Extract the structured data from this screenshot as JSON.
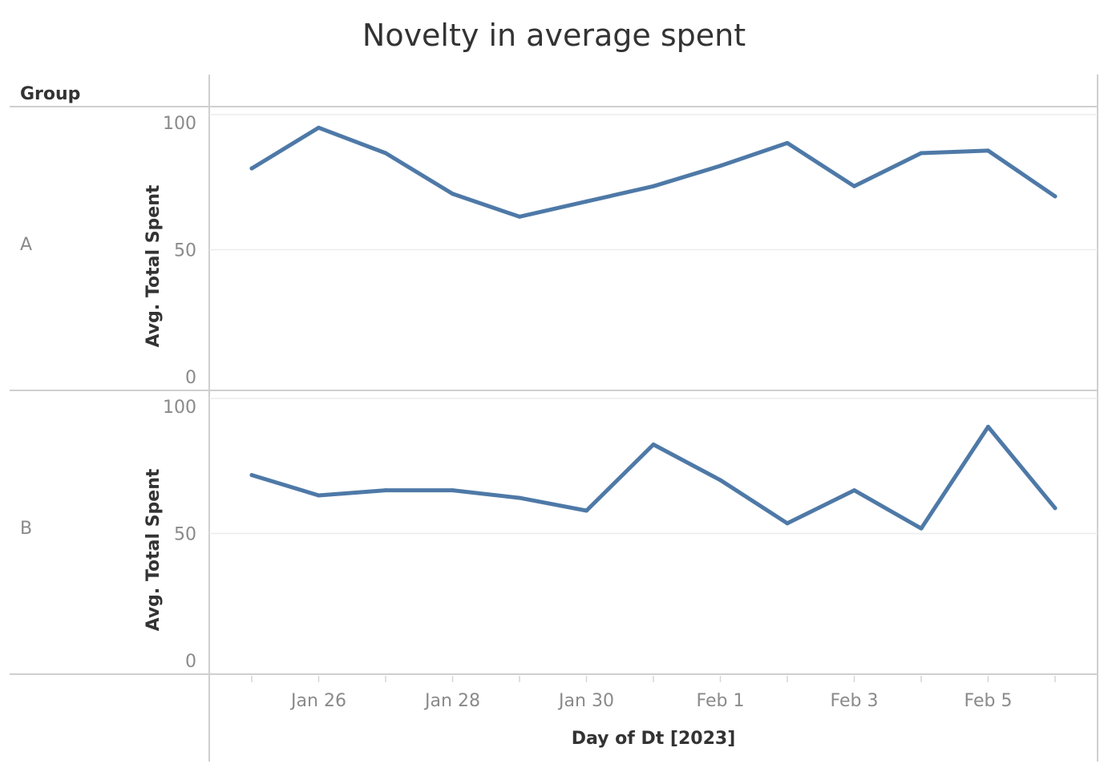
{
  "chart_data": {
    "type": "line",
    "title": "Novelty in average spent",
    "row_header": "Group",
    "xlabel": "Day of Dt [2023]",
    "ylabel": "Avg. Total Spent",
    "x": [
      "2023-01-25",
      "2023-01-26",
      "2023-01-27",
      "2023-01-28",
      "2023-01-29",
      "2023-01-30",
      "2023-01-31",
      "2023-02-01",
      "2023-02-02",
      "2023-02-03",
      "2023-02-04",
      "2023-02-05",
      "2023-02-06"
    ],
    "x_tick_labels": [
      {
        "date": "2023-01-26",
        "label": "Jan 26"
      },
      {
        "date": "2023-01-28",
        "label": "Jan 28"
      },
      {
        "date": "2023-01-30",
        "label": "Jan 30"
      },
      {
        "date": "2023-02-01",
        "label": "Feb 1"
      },
      {
        "date": "2023-02-03",
        "label": "Feb 3"
      },
      {
        "date": "2023-02-05",
        "label": "Feb 5"
      }
    ],
    "y_ticks": [
      0,
      50,
      100
    ],
    "ylim": [
      0,
      100
    ],
    "grid": true,
    "series_color": "#4e79a7",
    "panels": [
      {
        "group": "A",
        "values": [
          82,
          98,
          88,
          72,
          63,
          69,
          75,
          83,
          92,
          75,
          88,
          89,
          71
        ]
      },
      {
        "group": "B",
        "values": [
          73,
          65,
          67,
          67,
          64,
          59,
          85,
          71,
          54,
          67,
          52,
          92,
          60
        ]
      }
    ]
  }
}
